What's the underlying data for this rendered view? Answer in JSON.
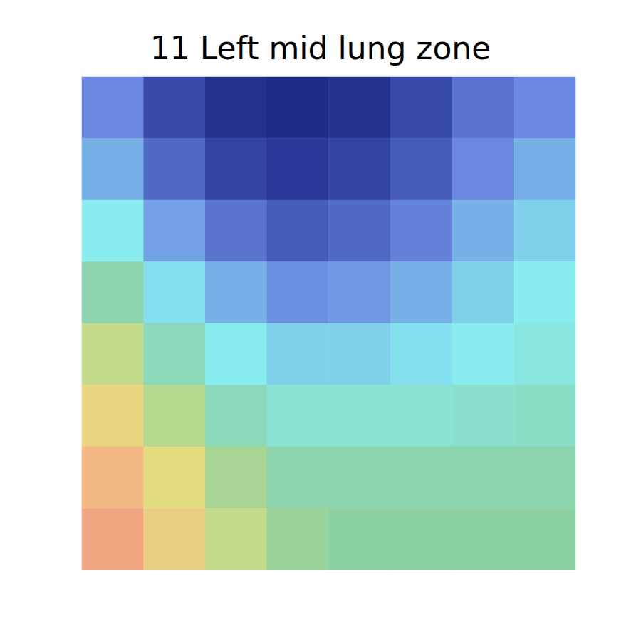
{
  "chart_data": {
    "type": "heatmap",
    "title": "11 Left mid lung zone",
    "cells": [
      [
        0.25,
        0.15,
        0.1,
        0.08,
        0.1,
        0.15,
        0.22,
        0.25
      ],
      [
        0.3,
        0.2,
        0.14,
        0.12,
        0.14,
        0.18,
        0.25,
        0.3
      ],
      [
        0.38,
        0.28,
        0.22,
        0.18,
        0.2,
        0.24,
        0.3,
        0.34
      ],
      [
        0.48,
        0.36,
        0.3,
        0.26,
        0.27,
        0.3,
        0.34,
        0.38
      ],
      [
        0.58,
        0.46,
        0.38,
        0.34,
        0.34,
        0.36,
        0.38,
        0.4
      ],
      [
        0.66,
        0.56,
        0.46,
        0.42,
        0.42,
        0.42,
        0.43,
        0.44
      ],
      [
        0.74,
        0.64,
        0.54,
        0.48,
        0.48,
        0.48,
        0.48,
        0.48
      ],
      [
        0.8,
        0.68,
        0.58,
        0.52,
        0.5,
        0.5,
        0.5,
        0.5
      ]
    ],
    "color_range": [
      0,
      1
    ],
    "tick_labels": false
  }
}
